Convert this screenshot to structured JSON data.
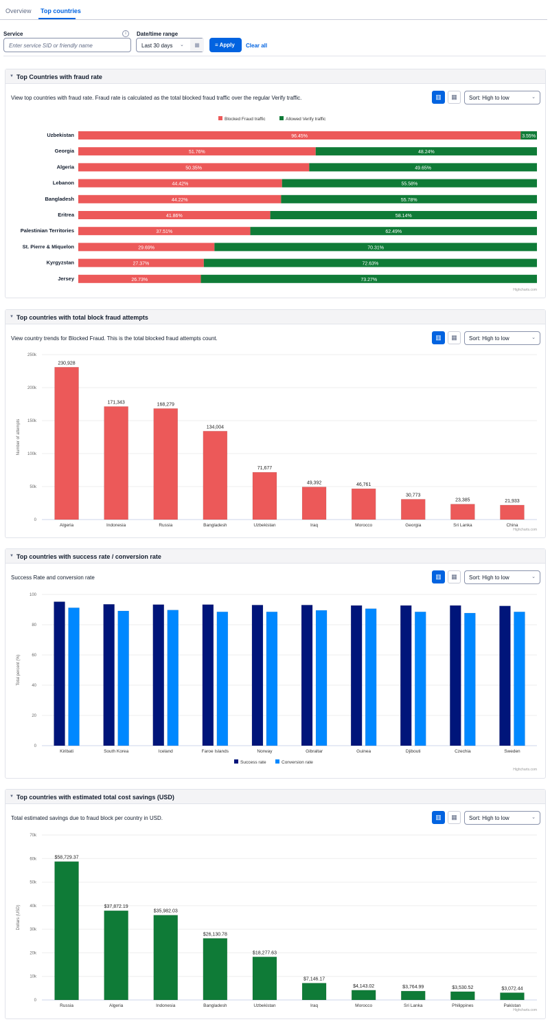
{
  "tabs": [
    {
      "label": "Overview"
    },
    {
      "label": "Top countries"
    }
  ],
  "filters": {
    "service_label": "Service",
    "service_placeholder": "Enter service SID or friendly name",
    "date_label": "Date/time range",
    "date_value": "Last 30 days",
    "apply": "Apply",
    "clear": "Clear all"
  },
  "credit": "Highcharts.com",
  "sort_label": "Sort: High to low",
  "panels": [
    {
      "title": "Top Countries with fraud rate",
      "desc": "View top countries with fraud rate. Fraud rate is calculated as the total blocked fraud traffic over the regular Verify traffic."
    },
    {
      "title": "Top countries with total block fraud attempts",
      "desc": "View country trends for Blocked Fraud. This is the total blocked fraud attempts count."
    },
    {
      "title": "Top countries with success rate / conversion rate",
      "desc": "Success Rate and conversion rate"
    },
    {
      "title": "Top countries with estimated total cost savings (USD)",
      "desc": "Total estimated savings due to fraud block per country in USD."
    }
  ],
  "chart_data": [
    {
      "type": "bar",
      "stacked": true,
      "orientation": "horizontal",
      "categories": [
        "Uzbekistan",
        "Georgia",
        "Algeria",
        "Lebanon",
        "Bangladesh",
        "Eritrea",
        "Palestinian Territories",
        "St. Pierre & Miquelon",
        "Kyrgyzstan",
        "Jersey"
      ],
      "series": [
        {
          "name": "Blocked Fraud traffic",
          "color": "#ec5959",
          "values": [
            96.45,
            51.76,
            50.35,
            44.42,
            44.22,
            41.86,
            37.51,
            29.69,
            27.37,
            26.73
          ]
        },
        {
          "name": "Allowed Verify traffic",
          "color": "#0f7b37",
          "values": [
            3.55,
            48.24,
            49.65,
            55.58,
            55.78,
            58.14,
            62.49,
            70.31,
            72.63,
            73.27
          ]
        }
      ],
      "legend": "top-center",
      "ylim": [
        0,
        100
      ]
    },
    {
      "type": "bar",
      "categories": [
        "Algeria",
        "Indonesia",
        "Russia",
        "Bangladesh",
        "Uzbekistan",
        "Iraq",
        "Morocco",
        "Georgia",
        "Sri Lanka",
        "China"
      ],
      "values": [
        230928,
        171343,
        168279,
        134004,
        71677,
        49392,
        46761,
        30773,
        23385,
        21933
      ],
      "labels": [
        "230,928",
        "171,343",
        "168,279",
        "134,004",
        "71,677",
        "49,392",
        "46,761",
        "30,773",
        "23,385",
        "21,933"
      ],
      "color": "#ec5959",
      "ylabel": "Number of attempts",
      "ylim": [
        0,
        250000
      ],
      "yticks": [
        "0",
        "50k",
        "100k",
        "150k",
        "200k",
        "250k"
      ],
      "grid": true
    },
    {
      "type": "bar",
      "categories": [
        "Kiribati",
        "South Korea",
        "Iceland",
        "Faroe Islands",
        "Norway",
        "Gibraltar",
        "Guinea",
        "Djibouti",
        "Czechia",
        "Sweden"
      ],
      "series": [
        {
          "name": "Success rate",
          "color": "#00157a",
          "values": [
            95.2,
            93.5,
            93.3,
            93.3,
            93.0,
            93.0,
            92.7,
            92.7,
            92.7,
            92.4
          ]
        },
        {
          "name": "Conversion rate",
          "color": "#0088ff",
          "values": [
            91.2,
            89.1,
            89.7,
            88.5,
            88.5,
            89.5,
            90.6,
            88.5,
            87.7,
            88.5
          ]
        }
      ],
      "ylabel": "Total percent (%)",
      "ylim": [
        0,
        100
      ],
      "yticks": [
        "0",
        "20",
        "40",
        "60",
        "80",
        "100"
      ],
      "legend": "bottom-center",
      "grid": true
    },
    {
      "type": "bar",
      "categories": [
        "Russia",
        "Algeria",
        "Indonesia",
        "Bangladesh",
        "Uzbekistan",
        "Iraq",
        "Morocco",
        "Sri Lanka",
        "Philippines",
        "Pakistan"
      ],
      "values": [
        58729.37,
        37872.19,
        35982.03,
        26130.78,
        18277.63,
        7146.17,
        4143.02,
        3764.99,
        3530.52,
        3072.44
      ],
      "labels": [
        "$58,729.37",
        "$37,872.19",
        "$35,982.03",
        "$26,130.78",
        "$18,277.63",
        "$7,146.17",
        "$4,143.02",
        "$3,764.99",
        "$3,530.52",
        "$3,072.44"
      ],
      "color": "#0f7b37",
      "ylabel": "Dollars (USD)",
      "ylim": [
        0,
        70000
      ],
      "yticks": [
        "0",
        "10k",
        "20k",
        "30k",
        "40k",
        "50k",
        "60k",
        "70k"
      ],
      "grid": true
    }
  ]
}
